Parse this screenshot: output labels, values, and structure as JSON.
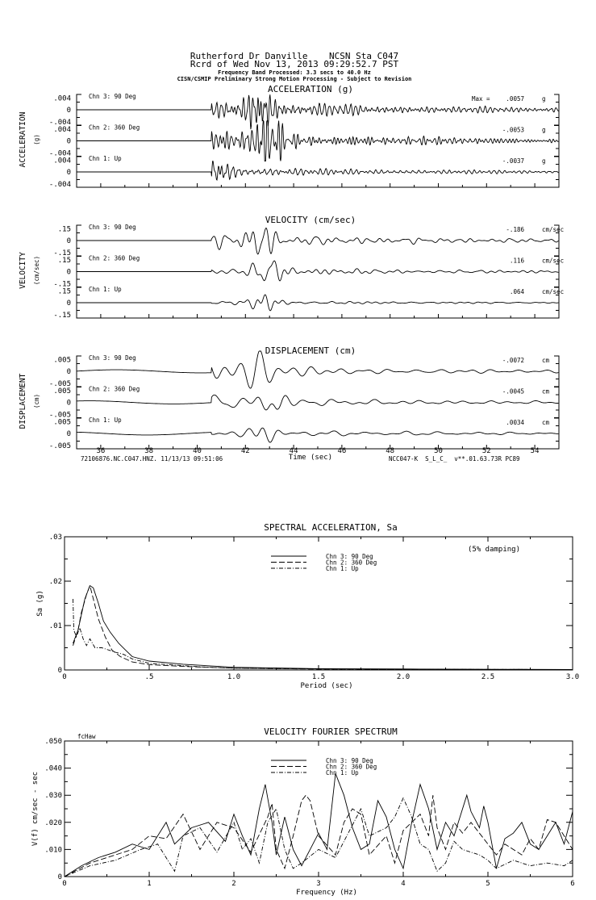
{
  "header": {
    "line1": "Rutherford Dr Danville    NCSN Sta C047",
    "line2": "Rcrd of Wed Nov 13, 2013 09:29:52.7 PST",
    "line3": "Frequency Band Processed: 3.3 secs to 40.0 Hz",
    "line4": "CISN/CSMIP Preliminary Strong Motion Processing - Subject to Revision"
  },
  "footer": {
    "left": "72106876.NC.C047.HNZ. 11/13/13 09:51:06",
    "right": "NCC047-K  S_L_C_  v**.01.63.73R PC89"
  },
  "chart_data": [
    {
      "type": "line",
      "title": "ACCELERATION (g)",
      "side_label": "ACCELERATION",
      "unit_label": "(g)",
      "xlabel": "Time (sec)",
      "xlim": [
        35,
        55
      ],
      "x_ticks": [
        "36",
        "38",
        "40",
        "42",
        "44",
        "46",
        "48",
        "50",
        "52",
        "54"
      ],
      "y_ticks": [
        ".004",
        "0",
        "-.004"
      ],
      "y_tick_value": 0.004,
      "dominant_freq_hz": 5,
      "max_prefix": "Max =",
      "channels": [
        {
          "name": "Chn 3: 90 Deg",
          "peak": ".0057",
          "unit": "g",
          "peak_value": 0.0057,
          "onset": 40.6,
          "peak_time": 42.6
        },
        {
          "name": "Chn 2: 360 Deg",
          "peak": "-.0053",
          "unit": "g",
          "peak_value": 0.0053,
          "onset": 40.6,
          "peak_time": 42.9
        },
        {
          "name": "Chn 1: Up",
          "peak": "-.0037",
          "unit": "g",
          "peak_value": 0.0037,
          "onset": 40.6,
          "peak_time": 40.8
        }
      ]
    },
    {
      "type": "line",
      "title": "VELOCITY (cm/sec)",
      "side_label": "VELOCITY",
      "unit_label": "(cm/sec)",
      "xlim": [
        35,
        55
      ],
      "y_ticks": [
        ".15",
        "0",
        "-.15"
      ],
      "y_tick_value": 0.15,
      "dominant_freq_hz": 2,
      "channels": [
        {
          "name": "Chn 3: 90 Deg",
          "peak": "-.186",
          "unit": "cm/sec",
          "peak_value": 0.186,
          "onset": 40.6,
          "peak_time": 42.6
        },
        {
          "name": "Chn 2: 360 Deg",
          "peak": ".116",
          "unit": "cm/sec",
          "peak_value": 0.116,
          "onset": 40.6,
          "peak_time": 42.9
        },
        {
          "name": "Chn 1: Up",
          "peak": ".064",
          "unit": "cm/sec",
          "peak_value": 0.064,
          "onset": 40.6,
          "peak_time": 42.8
        }
      ]
    },
    {
      "type": "line",
      "title": "DISPLACEMENT (cm)",
      "side_label": "DISPLACEMENT",
      "unit_label": "(cm)",
      "xlim": [
        35,
        55
      ],
      "y_ticks": [
        ".005",
        "0",
        "-.005"
      ],
      "y_tick_value": 0.005,
      "dominant_freq_hz": 1,
      "channels": [
        {
          "name": "Chn 3: 90 Deg",
          "peak": "-.0072",
          "unit": "cm",
          "peak_value": 0.0072,
          "onset": 40.6,
          "peak_time": 42.6
        },
        {
          "name": "Chn 2: 360 Deg",
          "peak": "-.0045",
          "unit": "cm",
          "peak_value": 0.0045,
          "onset": 40.6,
          "peak_time": 43.1
        },
        {
          "name": "Chn 1: Up",
          "peak": ".0034",
          "unit": "cm",
          "peak_value": 0.0034,
          "onset": 40.6,
          "peak_time": 42.8
        }
      ]
    },
    {
      "type": "line",
      "title": "SPECTRAL ACCELERATION, Sa",
      "xlabel": "Period (sec)",
      "ylabel": "Sa (g)",
      "annotation": "(5% damping)",
      "xlim": [
        0,
        3.0
      ],
      "ylim": [
        0,
        0.03
      ],
      "x_ticks": [
        "0",
        ".5",
        "1.0",
        "1.5",
        "2.0",
        "2.5",
        "3.0"
      ],
      "y_ticks": [
        ".03",
        ".02",
        ".01",
        "0"
      ],
      "legend_position": "top-center",
      "series": [
        {
          "name": "Chn 3: 90 Deg",
          "style": "solid",
          "points": [
            [
              0.05,
              0.006
            ],
            [
              0.08,
              0.009
            ],
            [
              0.1,
              0.0125
            ],
            [
              0.12,
              0.016
            ],
            [
              0.15,
              0.019
            ],
            [
              0.17,
              0.0185
            ],
            [
              0.2,
              0.015
            ],
            [
              0.23,
              0.011
            ],
            [
              0.27,
              0.0085
            ],
            [
              0.32,
              0.006
            ],
            [
              0.36,
              0.0045
            ],
            [
              0.4,
              0.003
            ],
            [
              0.5,
              0.002
            ],
            [
              0.7,
              0.0013
            ],
            [
              1.0,
              0.0006
            ],
            [
              1.5,
              0.0003
            ],
            [
              2.1,
              0.0002
            ],
            [
              3.0,
              0.0001
            ]
          ]
        },
        {
          "name": "Chn 2: 360 Deg",
          "style": "dashed",
          "points": [
            [
              0.05,
              0.0055
            ],
            [
              0.08,
              0.009
            ],
            [
              0.1,
              0.013
            ],
            [
              0.13,
              0.017
            ],
            [
              0.15,
              0.019
            ],
            [
              0.17,
              0.016
            ],
            [
              0.2,
              0.0115
            ],
            [
              0.24,
              0.0075
            ],
            [
              0.28,
              0.0045
            ],
            [
              0.33,
              0.003
            ],
            [
              0.4,
              0.0018
            ],
            [
              0.5,
              0.0012
            ],
            [
              0.7,
              0.0008
            ],
            [
              1.0,
              0.0004
            ],
            [
              1.5,
              0.0002
            ],
            [
              3.0,
              0.0001
            ]
          ]
        },
        {
          "name": "Chn 1: Up",
          "style": "dashdot",
          "points": [
            [
              0.05,
              0.016
            ],
            [
              0.055,
              0.009
            ],
            [
              0.07,
              0.0075
            ],
            [
              0.09,
              0.0095
            ],
            [
              0.11,
              0.007
            ],
            [
              0.13,
              0.0055
            ],
            [
              0.15,
              0.007
            ],
            [
              0.18,
              0.005
            ],
            [
              0.22,
              0.005
            ],
            [
              0.3,
              0.004
            ],
            [
              0.35,
              0.0035
            ],
            [
              0.4,
              0.0025
            ],
            [
              0.5,
              0.0015
            ],
            [
              0.8,
              0.0007
            ],
            [
              1.0,
              0.0004
            ],
            [
              1.6,
              0.0002
            ],
            [
              3.0,
              0.0001
            ]
          ]
        }
      ]
    },
    {
      "type": "line",
      "title": "VELOCITY FOURIER SPECTRUM",
      "corner_label": "fcHaw",
      "xlabel": "Frequency (Hz)",
      "ylabel": "V(f)  cm/sec - sec",
      "xlim": [
        0,
        6
      ],
      "ylim": [
        0,
        0.05
      ],
      "x_ticks": [
        "0",
        "1",
        "2",
        "3",
        "4",
        "5",
        "6"
      ],
      "y_ticks": [
        ".050",
        ".040",
        ".030",
        ".020",
        ".010",
        "0"
      ],
      "legend_position": "top-center",
      "series": [
        {
          "name": "Chn 3: 90 Deg",
          "style": "solid",
          "points": [
            [
              0,
              0
            ],
            [
              0.2,
              0.004
            ],
            [
              0.4,
              0.007
            ],
            [
              0.6,
              0.009
            ],
            [
              0.8,
              0.012
            ],
            [
              1.0,
              0.01
            ],
            [
              1.2,
              0.02
            ],
            [
              1.3,
              0.012
            ],
            [
              1.5,
              0.018
            ],
            [
              1.7,
              0.02
            ],
            [
              1.9,
              0.013
            ],
            [
              2.0,
              0.023
            ],
            [
              2.1,
              0.015
            ],
            [
              2.2,
              0.008
            ],
            [
              2.3,
              0.025
            ],
            [
              2.37,
              0.034
            ],
            [
              2.45,
              0.02
            ],
            [
              2.5,
              0.008
            ],
            [
              2.6,
              0.022
            ],
            [
              2.7,
              0.01
            ],
            [
              2.8,
              0.004
            ],
            [
              2.9,
              0.01
            ],
            [
              3.0,
              0.016
            ],
            [
              3.1,
              0.01
            ],
            [
              3.2,
              0.038
            ],
            [
              3.3,
              0.03
            ],
            [
              3.4,
              0.018
            ],
            [
              3.5,
              0.01
            ],
            [
              3.6,
              0.012
            ],
            [
              3.7,
              0.028
            ],
            [
              3.8,
              0.022
            ],
            [
              3.9,
              0.01
            ],
            [
              4.0,
              0.003
            ],
            [
              4.1,
              0.02
            ],
            [
              4.2,
              0.034
            ],
            [
              4.3,
              0.025
            ],
            [
              4.4,
              0.01
            ],
            [
              4.5,
              0.02
            ],
            [
              4.6,
              0.015
            ],
            [
              4.75,
              0.03
            ],
            [
              4.8,
              0.024
            ],
            [
              4.9,
              0.018
            ],
            [
              4.95,
              0.026
            ],
            [
              5.0,
              0.02
            ],
            [
              5.1,
              0.003
            ],
            [
              5.2,
              0.014
            ],
            [
              5.3,
              0.016
            ],
            [
              5.4,
              0.02
            ],
            [
              5.5,
              0.012
            ],
            [
              5.6,
              0.01
            ],
            [
              5.7,
              0.015
            ],
            [
              5.8,
              0.02
            ],
            [
              5.9,
              0.012
            ],
            [
              6.0,
              0.024
            ]
          ]
        },
        {
          "name": "Chn 2: 360 Deg",
          "style": "dashed",
          "points": [
            [
              0,
              0
            ],
            [
              0.3,
              0.005
            ],
            [
              0.5,
              0.007
            ],
            [
              0.8,
              0.01
            ],
            [
              1.0,
              0.015
            ],
            [
              1.2,
              0.014
            ],
            [
              1.4,
              0.023
            ],
            [
              1.6,
              0.01
            ],
            [
              1.8,
              0.02
            ],
            [
              2.0,
              0.018
            ],
            [
              2.2,
              0.009
            ],
            [
              2.4,
              0.022
            ],
            [
              2.45,
              0.027
            ],
            [
              2.5,
              0.01
            ],
            [
              2.6,
              0.003
            ],
            [
              2.7,
              0.015
            ],
            [
              2.8,
              0.028
            ],
            [
              2.85,
              0.03
            ],
            [
              2.9,
              0.028
            ],
            [
              3.0,
              0.015
            ],
            [
              3.2,
              0.008
            ],
            [
              3.3,
              0.02
            ],
            [
              3.4,
              0.025
            ],
            [
              3.5,
              0.023
            ],
            [
              3.6,
              0.008
            ],
            [
              3.8,
              0.015
            ],
            [
              3.9,
              0.005
            ],
            [
              4.0,
              0.017
            ],
            [
              4.1,
              0.02
            ],
            [
              4.2,
              0.023
            ],
            [
              4.3,
              0.015
            ],
            [
              4.35,
              0.03
            ],
            [
              4.4,
              0.018
            ],
            [
              4.5,
              0.01
            ],
            [
              4.6,
              0.02
            ],
            [
              4.7,
              0.016
            ],
            [
              4.8,
              0.02
            ],
            [
              5.0,
              0.012
            ],
            [
              5.1,
              0.008
            ],
            [
              5.2,
              0.012
            ],
            [
              5.4,
              0.008
            ],
            [
              5.5,
              0.014
            ],
            [
              5.6,
              0.01
            ],
            [
              5.7,
              0.021
            ],
            [
              5.8,
              0.02
            ],
            [
              5.9,
              0.015
            ],
            [
              6.0,
              0.01
            ]
          ]
        },
        {
          "name": "Chn 1: Up",
          "style": "dashdot",
          "points": [
            [
              0,
              0
            ],
            [
              0.3,
              0.004
            ],
            [
              0.6,
              0.006
            ],
            [
              0.9,
              0.01
            ],
            [
              1.1,
              0.012
            ],
            [
              1.3,
              0.002
            ],
            [
              1.4,
              0.015
            ],
            [
              1.6,
              0.018
            ],
            [
              1.8,
              0.009
            ],
            [
              2.0,
              0.02
            ],
            [
              2.1,
              0.01
            ],
            [
              2.2,
              0.014
            ],
            [
              2.3,
              0.005
            ],
            [
              2.4,
              0.02
            ],
            [
              2.5,
              0.025
            ],
            [
              2.6,
              0.01
            ],
            [
              2.7,
              0.003
            ],
            [
              2.8,
              0.005
            ],
            [
              3.0,
              0.01
            ],
            [
              3.2,
              0.007
            ],
            [
              3.3,
              0.013
            ],
            [
              3.5,
              0.025
            ],
            [
              3.6,
              0.015
            ],
            [
              3.8,
              0.018
            ],
            [
              3.9,
              0.022
            ],
            [
              4.0,
              0.029
            ],
            [
              4.1,
              0.022
            ],
            [
              4.2,
              0.012
            ],
            [
              4.3,
              0.01
            ],
            [
              4.4,
              0.002
            ],
            [
              4.5,
              0.005
            ],
            [
              4.6,
              0.013
            ],
            [
              4.7,
              0.01
            ],
            [
              4.9,
              0.008
            ],
            [
              5.0,
              0.006
            ],
            [
              5.1,
              0.003
            ],
            [
              5.3,
              0.006
            ],
            [
              5.5,
              0.004
            ],
            [
              5.7,
              0.005
            ],
            [
              5.9,
              0.004
            ],
            [
              6.0,
              0.006
            ]
          ]
        }
      ]
    }
  ]
}
